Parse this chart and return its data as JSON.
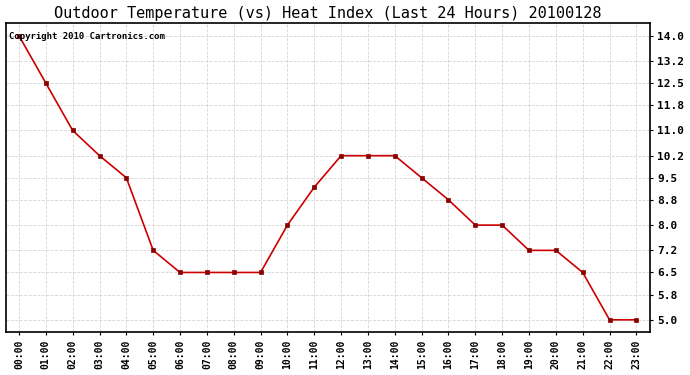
{
  "title": "Outdoor Temperature (vs) Heat Index (Last 24 Hours) 20100128",
  "copyright": "Copyright 2010 Cartronics.com",
  "x_labels": [
    "00:00",
    "01:00",
    "02:00",
    "03:00",
    "04:00",
    "05:00",
    "06:00",
    "07:00",
    "08:00",
    "09:00",
    "10:00",
    "11:00",
    "12:00",
    "13:00",
    "14:00",
    "15:00",
    "16:00",
    "17:00",
    "18:00",
    "19:00",
    "20:00",
    "21:00",
    "22:00",
    "23:00"
  ],
  "y_values": [
    14.0,
    12.5,
    11.0,
    10.2,
    9.5,
    7.2,
    6.5,
    6.5,
    6.5,
    6.5,
    8.0,
    9.2,
    10.2,
    10.2,
    10.2,
    9.5,
    8.8,
    8.0,
    8.0,
    7.2,
    7.2,
    6.5,
    5.0,
    5.0
  ],
  "y_ticks": [
    5.0,
    5.8,
    6.5,
    7.2,
    8.0,
    8.8,
    9.5,
    10.2,
    11.0,
    11.8,
    12.5,
    13.2,
    14.0
  ],
  "ylim": [
    4.6,
    14.4
  ],
  "line_color": "#cc0000",
  "marker_color": "#880000",
  "background_color": "#ffffff",
  "grid_color": "#cccccc",
  "title_fontsize": 11,
  "copyright_fontsize": 6.5,
  "tick_fontsize": 7,
  "ytick_fontsize": 8
}
